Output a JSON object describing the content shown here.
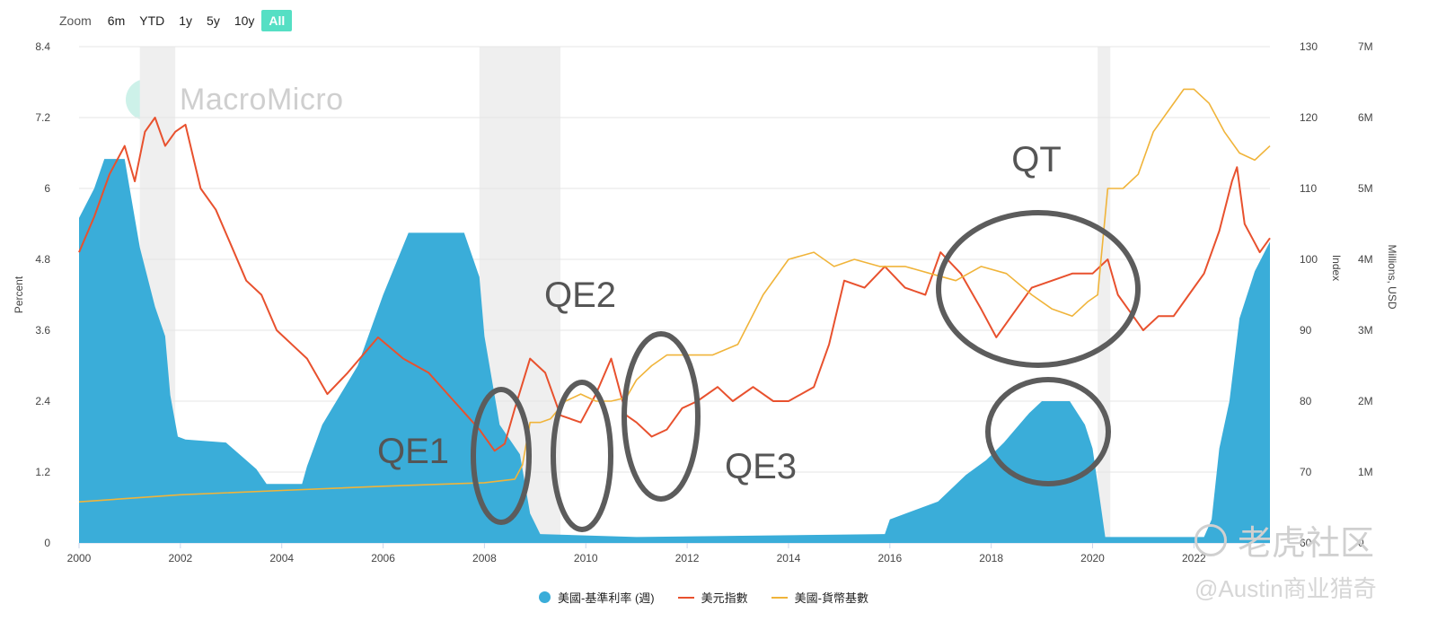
{
  "zoom": {
    "label": "Zoom",
    "buttons": [
      "6m",
      "YTD",
      "1y",
      "5y",
      "10y",
      "All"
    ],
    "active": "All",
    "active_color": "#55dfc4"
  },
  "watermarks": {
    "macromicro": "MacroMicro",
    "tiger": "老虎社区",
    "author": "@Austin商业猎奇"
  },
  "colors": {
    "rate": "#3aadd9",
    "dxy": "#e8512e",
    "base": "#f0b43a",
    "recession": "#efefef",
    "annotation": "#5c5c5c"
  },
  "legend": [
    {
      "label": "美國-基準利率 (週)",
      "color": "#3aadd9",
      "shape": "dot"
    },
    {
      "label": "美元指數",
      "color": "#e8512e",
      "shape": "line"
    },
    {
      "label": "美國-貨幣基數",
      "color": "#f0b43a",
      "shape": "line"
    }
  ],
  "annotations": [
    "QE1",
    "QE2",
    "QE3",
    "QT"
  ],
  "chart_data": {
    "type": "area",
    "x_ticks": [
      "2000",
      "2002",
      "2004",
      "2006",
      "2008",
      "2010",
      "2012",
      "2014",
      "2016",
      "2018",
      "2020",
      "2022"
    ],
    "xlim": [
      2000,
      2023.5
    ],
    "axes": {
      "left": {
        "title": "Percent",
        "ticks": [
          "0",
          "1.2",
          "2.4",
          "3.6",
          "4.8",
          "6",
          "7.2",
          "8.4"
        ],
        "range": [
          0,
          8.4
        ]
      },
      "right1": {
        "title": "Index",
        "ticks": [
          "60",
          "70",
          "80",
          "90",
          "100",
          "110",
          "120",
          "130"
        ],
        "range": [
          60,
          130
        ]
      },
      "right2": {
        "title": "Millions, USD",
        "ticks": [
          "0",
          "1M",
          "2M",
          "3M",
          "4M",
          "5M",
          "6M",
          "7M"
        ],
        "range": [
          0,
          7000000
        ]
      }
    },
    "recessions": [
      [
        2001.2,
        2001.9
      ],
      [
        2007.9,
        2009.5
      ],
      [
        2020.1,
        2020.35
      ]
    ],
    "grid": true,
    "series": [
      {
        "name": "美國-基準利率 (週)",
        "kind": "area",
        "axis": "left",
        "x": [
          2000.0,
          2000.3,
          2000.5,
          2000.9,
          2001.0,
          2001.2,
          2001.5,
          2001.7,
          2001.8,
          2001.95,
          2002.1,
          2002.9,
          2003.5,
          2003.7,
          2004.4,
          2004.5,
          2004.8,
          2005.5,
          2006.0,
          2006.5,
          2007.6,
          2007.9,
          2008.0,
          2008.3,
          2008.7,
          2008.9,
          2009.1,
          2011.0,
          2015.9,
          2016.0,
          2016.95,
          2017.5,
          2017.9,
          2018.25,
          2018.75,
          2019.0,
          2019.55,
          2019.85,
          2020.0,
          2020.15,
          2020.25,
          2022.2,
          2022.35,
          2022.5,
          2022.7,
          2022.9,
          2023.2,
          2023.5
        ],
        "values": [
          5.5,
          6.0,
          6.5,
          6.5,
          6.0,
          5.0,
          4.0,
          3.5,
          2.5,
          1.8,
          1.75,
          1.7,
          1.25,
          1.0,
          1.0,
          1.3,
          2.0,
          3.0,
          4.2,
          5.25,
          5.25,
          4.5,
          3.5,
          2.0,
          1.5,
          0.5,
          0.15,
          0.1,
          0.15,
          0.4,
          0.7,
          1.15,
          1.4,
          1.7,
          2.2,
          2.4,
          2.4,
          2.0,
          1.6,
          0.7,
          0.1,
          0.1,
          0.4,
          1.6,
          2.4,
          3.8,
          4.6,
          5.1
        ]
      },
      {
        "name": "美元指數",
        "kind": "line",
        "axis": "right1",
        "x": [
          2000.0,
          2000.3,
          2000.6,
          2000.9,
          2001.1,
          2001.3,
          2001.5,
          2001.7,
          2001.9,
          2002.1,
          2002.4,
          2002.7,
          2003.0,
          2003.3,
          2003.6,
          2003.9,
          2004.2,
          2004.5,
          2004.9,
          2005.3,
          2005.9,
          2006.4,
          2006.9,
          2007.4,
          2007.9,
          2008.2,
          2008.4,
          2008.6,
          2008.9,
          2009.2,
          2009.5,
          2009.9,
          2010.2,
          2010.5,
          2010.8,
          2011.0,
          2011.3,
          2011.6,
          2011.9,
          2012.2,
          2012.6,
          2012.9,
          2013.3,
          2013.7,
          2014.0,
          2014.5,
          2014.8,
          2015.1,
          2015.5,
          2015.9,
          2016.3,
          2016.7,
          2017.0,
          2017.4,
          2017.8,
          2018.1,
          2018.4,
          2018.8,
          2019.2,
          2019.6,
          2020.0,
          2020.3,
          2020.5,
          2020.7,
          2021.0,
          2021.3,
          2021.6,
          2021.9,
          2022.2,
          2022.5,
          2022.75,
          2022.85,
          2023.0,
          2023.3,
          2023.5
        ],
        "values": [
          101,
          106,
          112,
          116,
          111,
          118,
          120,
          116,
          118,
          119,
          110,
          107,
          102,
          97,
          95,
          90,
          88,
          86,
          81,
          84,
          89,
          86,
          84,
          80,
          76,
          73,
          74,
          79,
          86,
          84,
          78,
          77,
          81,
          86,
          78,
          77,
          75,
          76,
          79,
          80,
          82,
          80,
          82,
          80,
          80,
          82,
          88,
          97,
          96,
          99,
          96,
          95,
          101,
          98,
          93,
          89,
          92,
          96,
          97,
          98,
          98,
          100,
          95,
          93,
          90,
          92,
          92,
          95,
          98,
          104,
          111,
          113,
          105,
          101,
          103
        ]
      },
      {
        "name": "美國-貨幣基數",
        "kind": "line",
        "axis": "right2",
        "x": [
          2000.0,
          2002.0,
          2004.0,
          2006.0,
          2008.0,
          2008.6,
          2008.75,
          2008.9,
          2009.1,
          2009.3,
          2009.6,
          2009.9,
          2010.2,
          2010.5,
          2010.8,
          2011.0,
          2011.3,
          2011.6,
          2012.0,
          2012.5,
          2013.0,
          2013.5,
          2014.0,
          2014.5,
          2014.9,
          2015.3,
          2015.8,
          2016.3,
          2016.8,
          2017.3,
          2017.8,
          2018.3,
          2018.8,
          2019.2,
          2019.6,
          2019.9,
          2020.1,
          2020.3,
          2020.6,
          2020.9,
          2021.2,
          2021.5,
          2021.8,
          2022.0,
          2022.3,
          2022.6,
          2022.9,
          2023.2,
          2023.5
        ],
        "values": [
          580000,
          680000,
          740000,
          800000,
          850000,
          900000,
          1100000,
          1700000,
          1700000,
          1750000,
          2000000,
          2100000,
          2000000,
          2000000,
          2050000,
          2300000,
          2500000,
          2650000,
          2650000,
          2650000,
          2800000,
          3500000,
          4000000,
          4100000,
          3900000,
          4000000,
          3900000,
          3900000,
          3800000,
          3700000,
          3900000,
          3800000,
          3500000,
          3300000,
          3200000,
          3400000,
          3500000,
          5000000,
          5000000,
          5200000,
          5800000,
          6100000,
          6400000,
          6400000,
          6200000,
          5800000,
          5500000,
          5400000,
          5600000
        ]
      }
    ]
  }
}
